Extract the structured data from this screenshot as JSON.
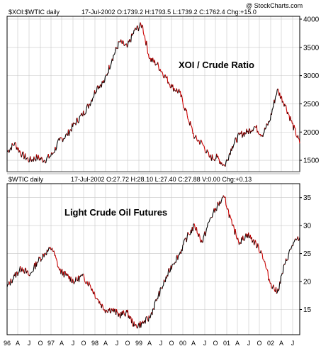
{
  "watermark": "@ StockCharts.com",
  "x_tick_labels": [
    "96",
    "A",
    "J",
    "O",
    "97",
    "A",
    "J",
    "O",
    "98",
    "A",
    "J",
    "O",
    "99",
    "A",
    "J",
    "O",
    "00",
    "A",
    "J",
    "O",
    "01",
    "A",
    "J",
    "O",
    "02",
    "A",
    "J"
  ],
  "colors": {
    "up": "#000000",
    "down": "#cc0000",
    "grid": "#c8c8c8",
    "frame": "#000000",
    "separator": "#d8d8d8"
  },
  "top_panel": {
    "symbol": "$XOI:$WTIC daily",
    "header": "17-Jul-2002 O:1739.2 H:1793.5 L:1739.2 C:1762.4 Chg:+15.0",
    "label": "XOI / Crude Ratio",
    "y_ticks": [
      "4000",
      "3500",
      "3000",
      "2500",
      "2000",
      "1500"
    ]
  },
  "bottom_panel": {
    "symbol": "$WTIC daily",
    "header": "17-Jul-2002 O:27.72 H:28.10 L:27.40 C:27.88 V:0.00 Chg:+0.13",
    "label": "Light Crude Oil Futures",
    "y_ticks": [
      "35",
      "30",
      "25",
      "20",
      "15"
    ]
  },
  "chart_data": [
    {
      "type": "line",
      "title": "XOI / Crude Ratio",
      "ylim": [
        1300,
        4050
      ],
      "x": [
        "1996-01",
        "1996-03",
        "1996-05",
        "1996-07",
        "1996-09",
        "1996-11",
        "1997-01",
        "1997-03",
        "1997-05",
        "1997-07",
        "1997-09",
        "1997-11",
        "1998-01",
        "1998-03",
        "1998-05",
        "1998-07",
        "1998-09",
        "1998-11",
        "1999-01",
        "1999-03",
        "1999-05",
        "1999-07",
        "1999-09",
        "1999-11",
        "2000-01",
        "2000-03",
        "2000-05",
        "2000-07",
        "2000-09",
        "2000-11",
        "2001-01",
        "2001-03",
        "2001-05",
        "2001-07",
        "2001-09",
        "2001-11",
        "2002-01",
        "2002-03",
        "2002-05",
        "2002-07"
      ],
      "series": [
        {
          "values": [
            1650,
            1800,
            1600,
            1500,
            1550,
            1500,
            1600,
            1850,
            1950,
            2150,
            2300,
            2500,
            2800,
            2900,
            3300,
            3600,
            3500,
            3800,
            3900,
            3300,
            3200,
            3000,
            2800,
            2700,
            2300,
            1900,
            1800,
            1550,
            1550,
            1400,
            1750,
            1950,
            2000,
            2100,
            1950,
            2200,
            2750,
            2500,
            2150,
            1800
          ]
        }
      ]
    },
    {
      "type": "line",
      "title": "Light Crude Oil Futures",
      "ylim": [
        10.5,
        37.5
      ],
      "x": [
        "1996-01",
        "1996-03",
        "1996-05",
        "1996-07",
        "1996-09",
        "1996-11",
        "1997-01",
        "1997-03",
        "1997-05",
        "1997-07",
        "1997-09",
        "1997-11",
        "1998-01",
        "1998-03",
        "1998-05",
        "1998-07",
        "1998-09",
        "1998-11",
        "1999-01",
        "1999-03",
        "1999-05",
        "1999-07",
        "1999-09",
        "1999-11",
        "2000-01",
        "2000-03",
        "2000-05",
        "2000-07",
        "2000-09",
        "2000-11",
        "2001-01",
        "2001-03",
        "2001-05",
        "2001-07",
        "2001-09",
        "2001-11",
        "2002-01",
        "2002-03",
        "2002-05",
        "2002-07"
      ],
      "series": [
        {
          "values": [
            19,
            21,
            22.5,
            21,
            23.5,
            25,
            26,
            22,
            21,
            20,
            21,
            19.5,
            17,
            15,
            15,
            14,
            14.5,
            12,
            12.5,
            13.5,
            17,
            20,
            23,
            25,
            28,
            30,
            27,
            31,
            33.5,
            35,
            30,
            27,
            28.5,
            27,
            25,
            20,
            18,
            23,
            26.5,
            27.9
          ]
        }
      ]
    }
  ]
}
